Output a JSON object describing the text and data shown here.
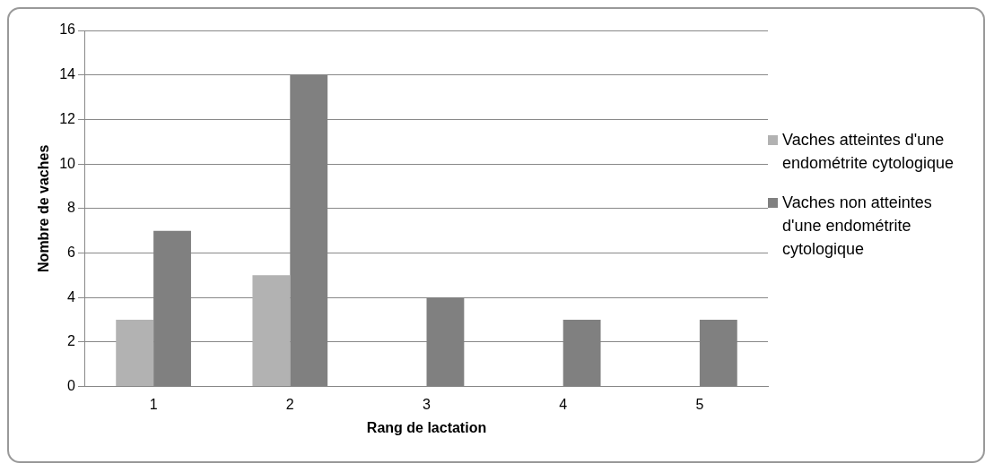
{
  "chart_data": {
    "type": "bar",
    "xlabel": "Rang de lactation",
    "ylabel": "Nombre de vaches",
    "categories": [
      "1",
      "2",
      "3",
      "4",
      "5"
    ],
    "series": [
      {
        "name": "Vaches atteintes d'une endométrite cytologique",
        "color": "#b2b2b2",
        "values": [
          3,
          5,
          0,
          0,
          0
        ]
      },
      {
        "name": "Vaches non atteintes d'une endométrite cytologique",
        "color": "#808080",
        "values": [
          7,
          14,
          4,
          3,
          3
        ]
      }
    ],
    "ylim": [
      0,
      16
    ],
    "yticks": [
      0,
      2,
      4,
      6,
      8,
      10,
      12,
      14,
      16
    ],
    "grid": "y",
    "legend": "right"
  }
}
